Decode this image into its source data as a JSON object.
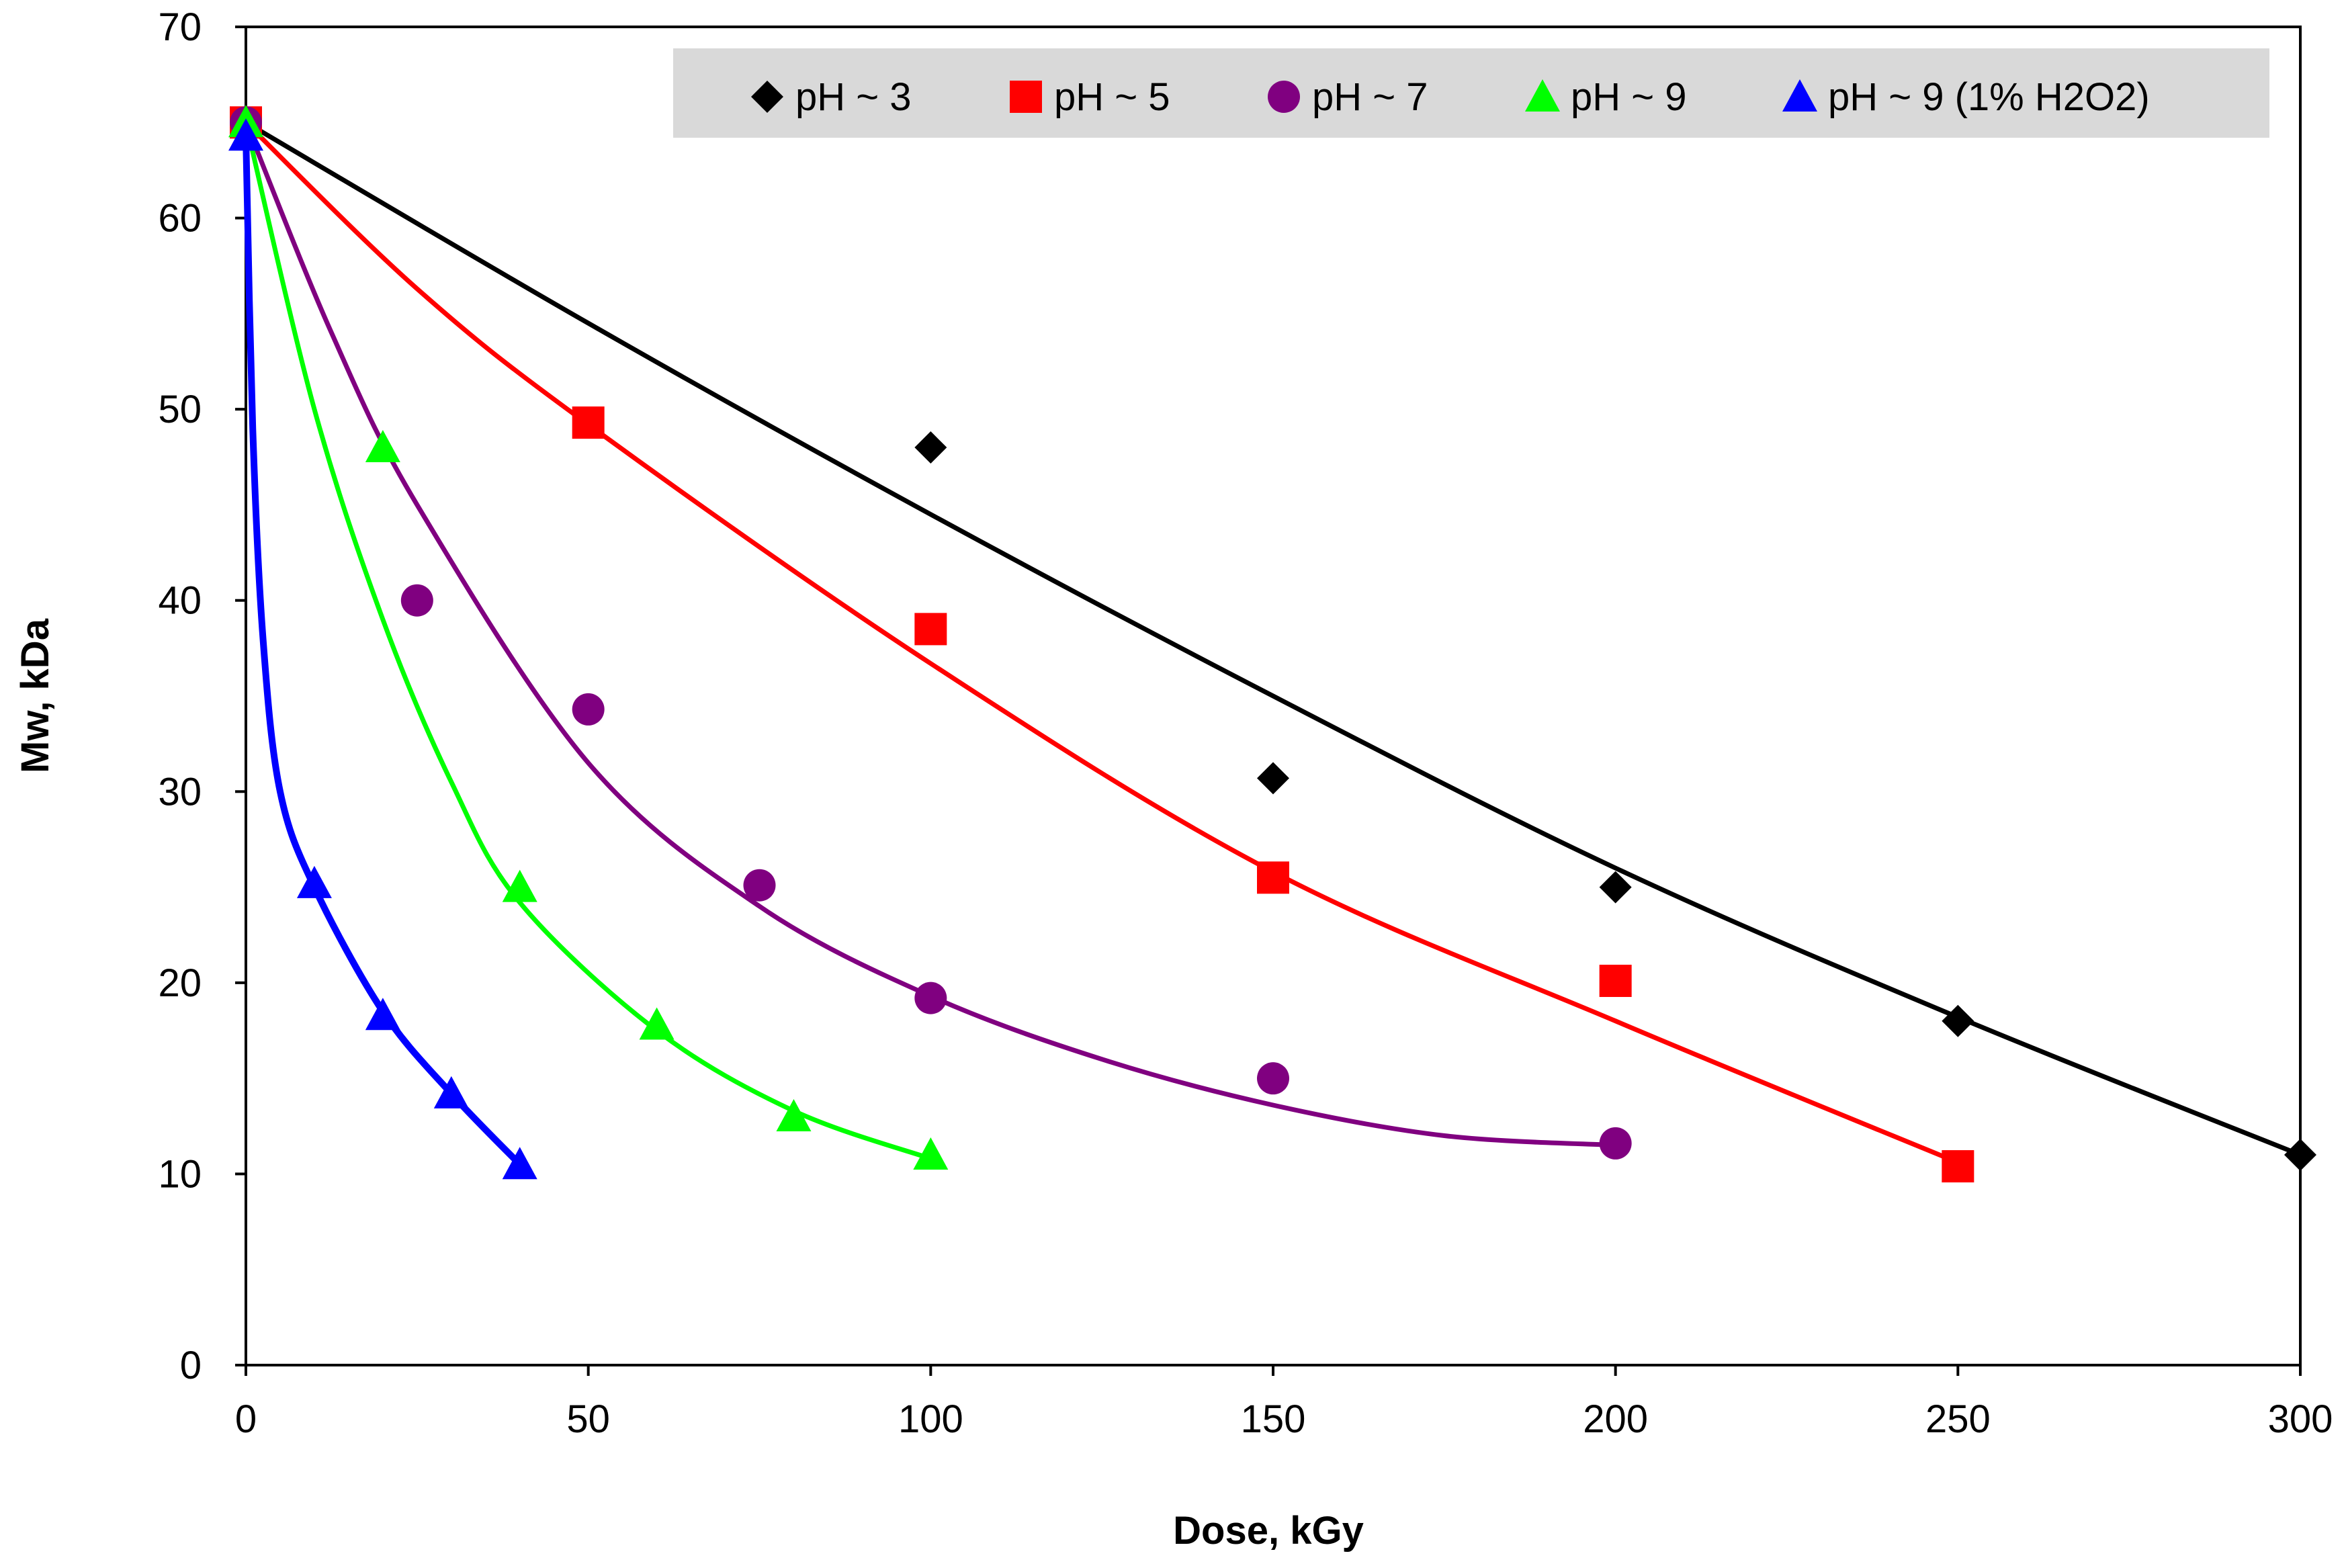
{
  "chart_data": {
    "type": "scatter",
    "title": "",
    "xlabel": "Dose, kGy",
    "ylabel": "Mw, kDa",
    "xlim": [
      0,
      300
    ],
    "ylim": [
      0,
      70
    ],
    "x_ticks": [
      0,
      50,
      100,
      150,
      200,
      250,
      300
    ],
    "y_ticks": [
      0,
      10,
      20,
      30,
      40,
      50,
      60,
      70
    ],
    "grid": false,
    "legend_position": "top-right",
    "series": [
      {
        "name": "pH ~ 3",
        "color": "#000000",
        "marker": "diamond",
        "points": [
          [
            0,
            65
          ],
          [
            100,
            48
          ],
          [
            150,
            30.7
          ],
          [
            200,
            25
          ],
          [
            250,
            18
          ],
          [
            300,
            11
          ]
        ],
        "fit": [
          [
            0,
            65
          ],
          [
            50,
            54.5
          ],
          [
            100,
            44.5
          ],
          [
            150,
            35
          ],
          [
            200,
            26
          ],
          [
            250,
            18.2
          ],
          [
            300,
            11
          ]
        ]
      },
      {
        "name": "pH ~ 5",
        "color": "#ff0000",
        "marker": "square",
        "points": [
          [
            0,
            65
          ],
          [
            50,
            49.3
          ],
          [
            100,
            38.5
          ],
          [
            150,
            25.5
          ],
          [
            200,
            20.1
          ],
          [
            250,
            10.4
          ]
        ],
        "fit": [
          [
            0,
            65
          ],
          [
            25,
            56.3
          ],
          [
            50,
            49.2
          ],
          [
            100,
            36.7
          ],
          [
            150,
            25.8
          ],
          [
            200,
            18
          ],
          [
            250,
            10.6
          ]
        ]
      },
      {
        "name": "pH ~ 7",
        "color": "#800080",
        "marker": "circle",
        "points": [
          [
            0,
            65
          ],
          [
            25,
            40
          ],
          [
            50,
            34.3
          ],
          [
            75,
            25.1
          ],
          [
            100,
            19.2
          ],
          [
            150,
            15
          ],
          [
            200,
            11.6
          ]
        ],
        "fit": [
          [
            0,
            65
          ],
          [
            12.5,
            54
          ],
          [
            25,
            45
          ],
          [
            50,
            31.5
          ],
          [
            75,
            24
          ],
          [
            100,
            19.3
          ],
          [
            125,
            16
          ],
          [
            150,
            13.6
          ],
          [
            175,
            12
          ],
          [
            200,
            11.5
          ]
        ]
      },
      {
        "name": "pH ~ 9",
        "color": "#00ff00",
        "marker": "triangle",
        "points": [
          [
            0,
            65
          ],
          [
            20,
            48
          ],
          [
            40,
            25
          ],
          [
            60,
            17.8
          ],
          [
            80,
            13
          ],
          [
            100,
            11
          ]
        ],
        "fit": [
          [
            0,
            65
          ],
          [
            10,
            50
          ],
          [
            20,
            39
          ],
          [
            30,
            30.5
          ],
          [
            40,
            24.2
          ],
          [
            60,
            17.5
          ],
          [
            80,
            13.3
          ],
          [
            100,
            10.8
          ]
        ]
      },
      {
        "name": "pH ~ 9 (1% H2O2)",
        "color": "#0000ff",
        "marker": "triangle",
        "points": [
          [
            0,
            64.3
          ],
          [
            10,
            25.2
          ],
          [
            20,
            18.3
          ],
          [
            30,
            14.2
          ],
          [
            40,
            10.5
          ]
        ],
        "fit": [
          [
            0,
            64.3
          ],
          [
            1,
            49
          ],
          [
            2.5,
            38
          ],
          [
            5,
            30
          ],
          [
            10,
            25
          ],
          [
            20,
            18.5
          ],
          [
            30,
            14.2
          ],
          [
            40,
            10.5
          ]
        ]
      }
    ]
  }
}
